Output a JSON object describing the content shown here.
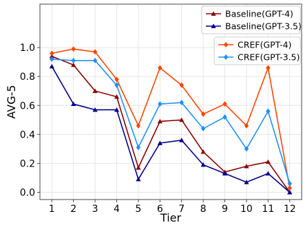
{
  "chart_data": {
    "type": "line",
    "xlabel": "Tier",
    "ylabel": "AVG-5",
    "x": [
      1,
      2,
      3,
      4,
      5,
      6,
      7,
      8,
      9,
      10,
      11,
      12
    ],
    "xlim": [
      0.45,
      12.55
    ],
    "ylim": [
      -0.05,
      1.3
    ],
    "yticks": [
      0.0,
      0.2,
      0.4,
      0.6,
      0.8,
      1.0
    ],
    "ytick_labels": [
      "0.0",
      "0.2",
      "0.4",
      "0.6",
      "0.8",
      "1.0"
    ],
    "grid": true,
    "series": [
      {
        "name": "Baseline(GPT-4)",
        "color": "#8b0000",
        "marker": "triangle",
        "values": [
          0.94,
          0.88,
          0.7,
          0.66,
          0.17,
          0.49,
          0.5,
          0.28,
          0.14,
          0.18,
          0.21,
          0.0
        ]
      },
      {
        "name": "Baseline(GPT-3.5)",
        "color": "#00008b",
        "marker": "triangle",
        "values": [
          0.87,
          0.61,
          0.57,
          0.57,
          0.09,
          0.34,
          0.36,
          0.19,
          0.13,
          0.07,
          0.13,
          0.0
        ]
      },
      {
        "name": "CREF(GPT-4)",
        "color": "#ff4500",
        "marker": "diamond",
        "values": [
          0.96,
          0.99,
          0.97,
          0.78,
          0.46,
          0.86,
          0.74,
          0.54,
          0.61,
          0.46,
          0.86,
          0.03
        ]
      },
      {
        "name": "CREF(GPT-3.5)",
        "color": "#1e90ff",
        "marker": "diamond",
        "values": [
          0.92,
          0.91,
          0.91,
          0.74,
          0.31,
          0.61,
          0.62,
          0.44,
          0.52,
          0.3,
          0.56,
          0.06
        ]
      }
    ],
    "legends": [
      {
        "placement": "top-right",
        "entries": [
          "Baseline(GPT-4)",
          "Baseline(GPT-3.5)"
        ]
      },
      {
        "placement": "upper-right",
        "entries": [
          "CREF(GPT-4)",
          "CREF(GPT-3.5)"
        ]
      }
    ]
  }
}
